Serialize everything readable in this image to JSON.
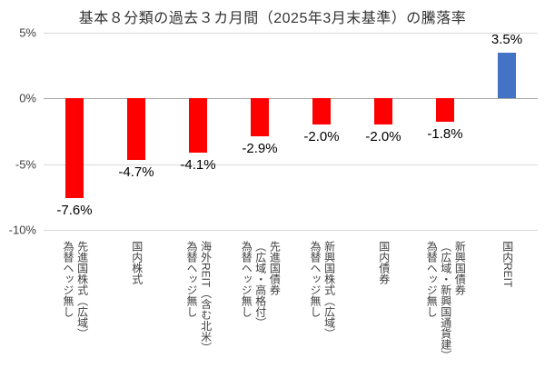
{
  "chart_data": {
    "type": "bar",
    "title": "基本８分類の過去３カ月間（2025年3月末基準）の騰落率",
    "categories": [
      "先進国株式（広域）\n為替ヘッジ無し",
      "国内株式",
      "海外REIT（含む北米）\n為替ヘッジ無し",
      "先進国債券\n（広域・高格付）\n為替ヘッジ無し",
      "新興国株式（広域）\n為替ヘッジ無し",
      "国内債券",
      "新興国債券\n（広域・新興国通貨建）\n為替ヘッジ無し",
      "国内REIT"
    ],
    "values": [
      -7.6,
      -4.7,
      -4.1,
      -2.9,
      -2.0,
      -2.0,
      -1.8,
      3.5
    ],
    "value_labels": [
      "-7.6%",
      "-4.7%",
      "-4.1%",
      "-2.9%",
      "-2.0%",
      "-2.0%",
      "-1.8%",
      "3.5%"
    ],
    "bar_colors": [
      "#ff0000",
      "#ff0000",
      "#ff0000",
      "#ff0000",
      "#ff0000",
      "#ff0000",
      "#ff0000",
      "#4472c4"
    ],
    "negative_color": "#ff0000",
    "positive_color": "#4472c4",
    "ylim": [
      -10,
      5
    ],
    "yticks": [
      5,
      0,
      -5,
      -10
    ],
    "ytick_labels": [
      "5%",
      "0%",
      "-5%",
      "-10%"
    ],
    "xlabel": "",
    "ylabel": "",
    "grid": true,
    "legend": false
  }
}
